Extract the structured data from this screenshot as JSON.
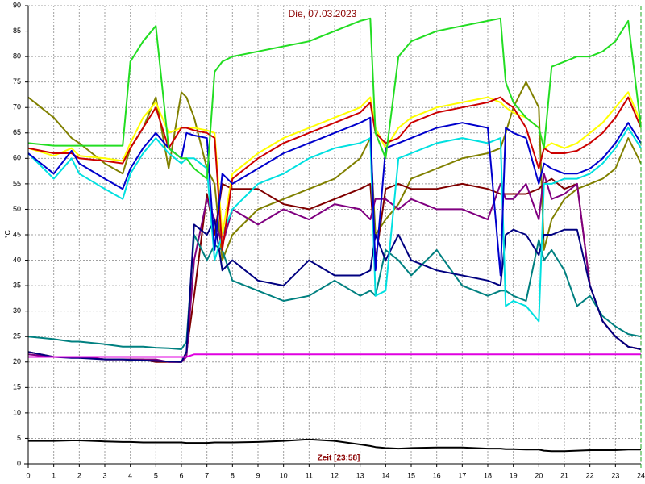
{
  "chart_data": {
    "type": "line",
    "title": "Die, 07.03.2023",
    "y_label": "°C",
    "x_label": "Zeit [23:58]",
    "grid": true,
    "xlim": [
      0,
      24
    ],
    "xticks": [
      0,
      1,
      2,
      3,
      4,
      5,
      6,
      7,
      8,
      9,
      10,
      11,
      12,
      13,
      14,
      15,
      16,
      17,
      18,
      19,
      20,
      21,
      22,
      23,
      24
    ],
    "ylim": [
      0,
      90
    ],
    "yticks": [
      0,
      5,
      10,
      15,
      20,
      25,
      30,
      35,
      40,
      45,
      50,
      55,
      60,
      65,
      70,
      75,
      80,
      85,
      90
    ],
    "x": [
      0,
      1,
      1.7,
      2,
      3,
      3.7,
      4,
      4.5,
      5,
      5.5,
      6,
      6.2,
      6.5,
      7,
      7.3,
      7.6,
      8,
      9,
      10,
      11,
      12,
      13,
      13.4,
      13.6,
      14,
      14.5,
      15,
      16,
      17,
      18,
      18.5,
      18.7,
      19,
      19.5,
      20,
      20.2,
      20.5,
      21,
      21.5,
      22,
      22.5,
      23,
      23.5,
      24
    ],
    "series": [
      {
        "color": "#808000",
        "values": [
          72,
          68,
          64,
          63,
          59,
          57,
          62,
          66,
          72,
          58,
          73,
          72,
          68,
          58,
          55,
          40,
          45,
          50,
          52,
          54,
          56,
          60,
          64,
          45,
          48,
          51,
          56,
          58,
          60,
          61,
          62,
          65,
          70,
          75,
          70,
          42,
          48,
          52,
          54,
          55,
          56,
          58,
          64,
          59
        ]
      },
      {
        "color": "#800000",
        "values": [
          22,
          21,
          21,
          21,
          20.5,
          20.5,
          20.5,
          20.5,
          20,
          20,
          20,
          22,
          33,
          53,
          45,
          55,
          54,
          54,
          51,
          50,
          52,
          54,
          55,
          40,
          54,
          55,
          54,
          54,
          55,
          54,
          53,
          53,
          53,
          53,
          54,
          55,
          56,
          54,
          55,
          35,
          28,
          25,
          23,
          22.5
        ]
      },
      {
        "color": "#800080",
        "values": [
          21.5,
          21,
          21,
          21,
          20.5,
          20.5,
          20.5,
          20.5,
          20.5,
          20,
          20,
          21,
          40,
          52,
          48,
          43,
          50,
          47,
          50,
          48,
          51,
          50,
          48,
          52,
          52,
          50,
          52,
          50,
          50,
          48,
          55,
          52,
          52,
          55,
          48,
          57,
          52,
          53,
          55,
          35,
          28,
          25,
          23,
          22.5
        ]
      },
      {
        "color": "#008080",
        "values": [
          25,
          24.5,
          24,
          24,
          23.5,
          23,
          23,
          23,
          22.8,
          22.7,
          22.5,
          24,
          45,
          40,
          43,
          42,
          36,
          34,
          32,
          33,
          36,
          33,
          34,
          33,
          42,
          40,
          37,
          42,
          35,
          33,
          34,
          34,
          33,
          32,
          44,
          40,
          42,
          38,
          31,
          33,
          29,
          27,
          25.5,
          25
        ]
      },
      {
        "color": "#000080",
        "values": [
          22,
          21,
          20.8,
          20.8,
          20.5,
          20.5,
          20.4,
          20.3,
          20.2,
          20.1,
          20,
          22,
          47,
          45,
          48,
          38,
          40,
          36,
          35,
          40,
          37,
          37,
          38,
          45,
          40,
          45,
          40,
          38,
          37,
          36,
          35,
          45,
          46,
          45,
          41,
          45,
          45,
          46,
          46,
          35,
          28,
          25,
          23,
          22.5
        ]
      },
      {
        "color": "#e000e0",
        "values": [
          21,
          21,
          21,
          21,
          21,
          21,
          21,
          21,
          21,
          21,
          21,
          21,
          21.5,
          21.5,
          21.5,
          21.5,
          21.5,
          21.5,
          21.5,
          21.5,
          21.5,
          21.5,
          21.5,
          21.5,
          21.5,
          21.5,
          21.5,
          21.5,
          21.5,
          21.5,
          21.5,
          21.5,
          21.5,
          21.5,
          21.5,
          21.5,
          21.5,
          21.5,
          21.5,
          21.5,
          21.5,
          21.5,
          21.5,
          21.5
        ]
      },
      {
        "color": "#00e0e0",
        "values": [
          61,
          56,
          60,
          57,
          54,
          52,
          57,
          61,
          64,
          61,
          59,
          60,
          60,
          58,
          40,
          45,
          50,
          55,
          57,
          60,
          62,
          63,
          64,
          33,
          34,
          60,
          61,
          63,
          64,
          63,
          64,
          31,
          32,
          31,
          28,
          55,
          55,
          56,
          56,
          57,
          59,
          62,
          66,
          62
        ]
      },
      {
        "color": "#ffff00",
        "values": [
          62,
          60.5,
          62,
          60.5,
          60,
          59.5,
          63,
          68,
          71,
          65,
          66,
          66,
          66,
          65.5,
          65,
          45,
          57,
          61,
          64,
          66,
          68,
          70,
          72,
          66,
          62,
          66,
          68,
          70,
          71,
          72,
          71,
          70,
          69,
          68,
          66,
          62,
          63,
          62,
          63,
          65,
          67,
          70,
          73,
          67
        ]
      },
      {
        "color": "#cc0000",
        "values": [
          62,
          61,
          61,
          60,
          59.5,
          59,
          62,
          66,
          70,
          62,
          66,
          66,
          65.5,
          65,
          64,
          42,
          56,
          60,
          63,
          65,
          67,
          69,
          71,
          65,
          63,
          64,
          67,
          69,
          70,
          71,
          72,
          71,
          70,
          66,
          58,
          62,
          61,
          61,
          61.5,
          63,
          65,
          68,
          72,
          66
        ]
      },
      {
        "color": "#0000cc",
        "values": [
          61,
          57,
          61.5,
          59,
          56,
          54,
          58,
          62,
          65,
          62,
          60,
          65,
          64.5,
          64,
          42,
          57,
          55,
          58,
          61,
          63,
          65,
          67,
          68,
          38,
          62,
          63,
          64,
          66,
          67,
          66,
          37,
          66,
          65,
          64,
          55,
          59,
          58,
          57,
          57,
          58,
          60,
          63,
          67,
          63
        ]
      },
      {
        "color": "#22dd22",
        "values": [
          63,
          62.5,
          62.5,
          62.5,
          62.5,
          62.5,
          79,
          83,
          86,
          62,
          60,
          60,
          58,
          56,
          77,
          79,
          80,
          81,
          82,
          83,
          85,
          87,
          87.5,
          65,
          60,
          80,
          83,
          85,
          86,
          87,
          87.5,
          75,
          71,
          68,
          66,
          62,
          78,
          79,
          80,
          80,
          81,
          83,
          87,
          66
        ]
      },
      {
        "color": "#000000",
        "values": [
          4.5,
          4.5,
          4.6,
          4.6,
          4.4,
          4.3,
          4.3,
          4.2,
          4.2,
          4.2,
          4.2,
          4.1,
          4.1,
          4.1,
          4.2,
          4.2,
          4.2,
          4.3,
          4.5,
          4.8,
          4.5,
          3.8,
          3.5,
          3.3,
          3.1,
          3.0,
          3.1,
          3.2,
          3.2,
          3.0,
          3.0,
          2.9,
          2.9,
          2.8,
          2.8,
          2.6,
          2.5,
          2.5,
          2.6,
          2.7,
          2.7,
          2.7,
          2.8,
          2.8
        ]
      }
    ]
  }
}
